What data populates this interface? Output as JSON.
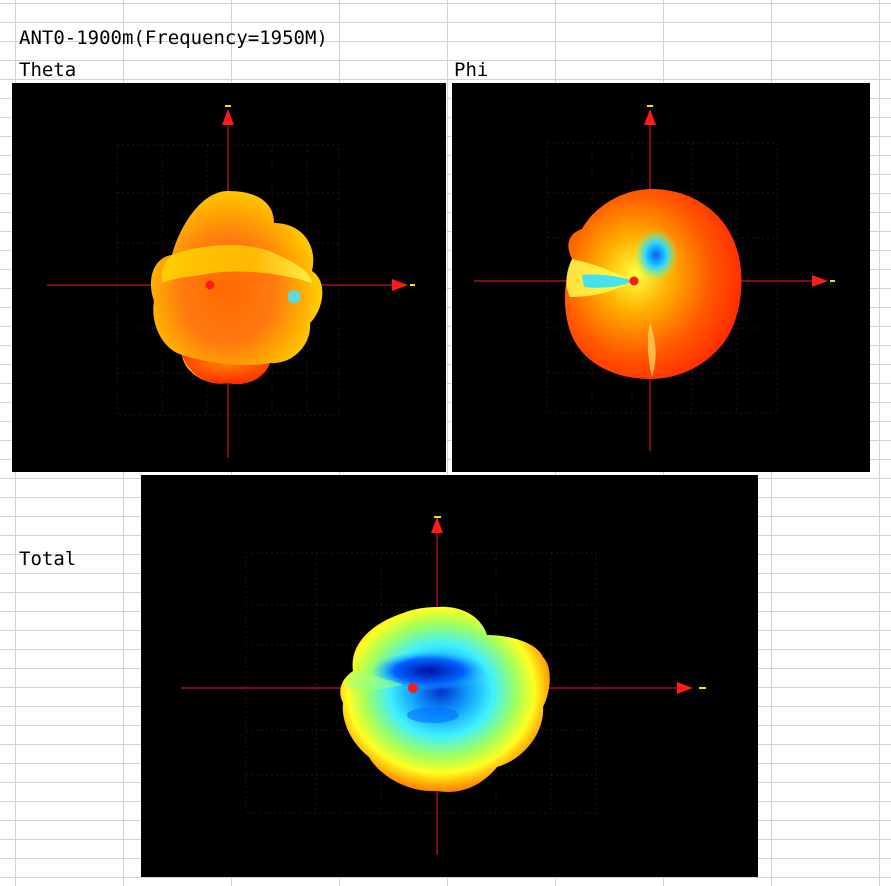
{
  "sheet": {
    "title": "ANT0-1900m(Frequency=1950M)",
    "labels": {
      "theta": "Theta",
      "phi": "Phi",
      "total": "Total"
    }
  },
  "plots": {
    "theta": {
      "name": "Theta",
      "palette": [
        "#ff3a00",
        "#ff7a00",
        "#ffd000",
        "#ffff40",
        "#20e0ff"
      ]
    },
    "phi": {
      "name": "Phi",
      "palette": [
        "#ff2a00",
        "#ff7000",
        "#ffe000",
        "#30e0ff",
        "#0050ff"
      ]
    },
    "total": {
      "name": "Total",
      "palette": [
        "#ff2000",
        "#ffb000",
        "#ffff30",
        "#30ffff",
        "#0040ff"
      ]
    }
  },
  "colors": {
    "axis": "#a0141e",
    "arrow": "#ff1a1a",
    "tick": "#e8e800",
    "background": "#000000",
    "gridline": "#d4d4d4"
  }
}
